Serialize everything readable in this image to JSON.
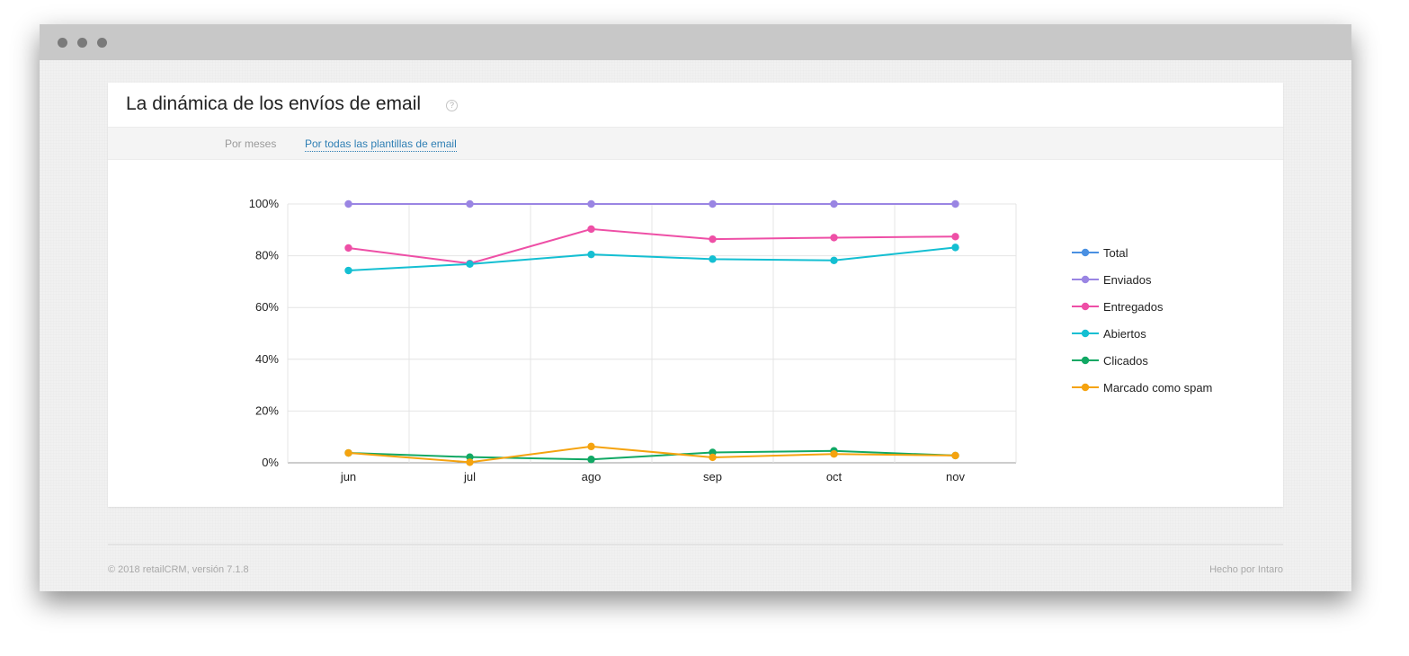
{
  "window": {
    "dots": [
      "window-dot-1",
      "window-dot-2",
      "window-dot-3"
    ]
  },
  "card": {
    "title": "La dinámica de los envíos de email",
    "help_icon": "?"
  },
  "filters": {
    "period": "Por meses",
    "templates": "Por todas las plantillas de email"
  },
  "colors": {
    "Total": "#4a90e2",
    "Enviados": "#9a85e3",
    "Entregados": "#ee4fa6",
    "Abiertos": "#14bfd2",
    "Clicados": "#11a864",
    "Marcado como spam": "#f5a30f",
    "link": "#2f7fb4"
  },
  "chart_data": {
    "type": "line",
    "categories": [
      "jun",
      "jul",
      "ago",
      "sep",
      "oct",
      "nov"
    ],
    "ylim": [
      0,
      100
    ],
    "yticks": [
      "0%",
      "20%",
      "40%",
      "60%",
      "80%",
      "100%"
    ],
    "grid": true,
    "legend_position": "right",
    "legend": [
      "Total",
      "Enviados",
      "Entregados",
      "Abiertos",
      "Clicados",
      "Marcado como spam"
    ],
    "series": [
      {
        "name": "Enviados",
        "values": [
          100,
          100,
          100,
          100,
          100,
          100
        ]
      },
      {
        "name": "Entregados",
        "values": [
          83,
          77,
          90.3,
          86.4,
          87,
          87.4
        ]
      },
      {
        "name": "Abiertos",
        "values": [
          74.3,
          76.8,
          80.5,
          78.7,
          78.2,
          83.2
        ]
      },
      {
        "name": "Clicados",
        "values": [
          3.8,
          2.2,
          1.3,
          4,
          4.6,
          2.8
        ]
      },
      {
        "name": "Marcado como spam",
        "values": [
          3.8,
          0.2,
          6.3,
          2.1,
          3.4,
          2.8
        ]
      }
    ]
  },
  "footer": {
    "copyright": "© 2018 retailCRM, versión 7.1.8",
    "made_by": "Hecho por Intaro"
  }
}
